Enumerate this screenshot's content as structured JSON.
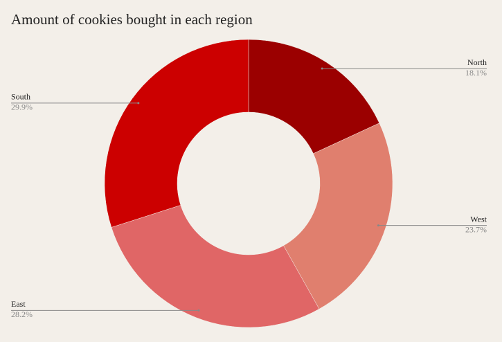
{
  "chart_data": {
    "type": "donut",
    "title": "Amount of cookies bought in each region",
    "categories": [
      "North",
      "West",
      "East",
      "South"
    ],
    "values": [
      18.1,
      23.7,
      28.2,
      29.9
    ],
    "value_labels": [
      "18.1%",
      "23.7%",
      "28.2%",
      "29.9%"
    ],
    "colors": [
      "#9b0000",
      "#e07f6e",
      "#e06666",
      "#cc0000"
    ]
  }
}
